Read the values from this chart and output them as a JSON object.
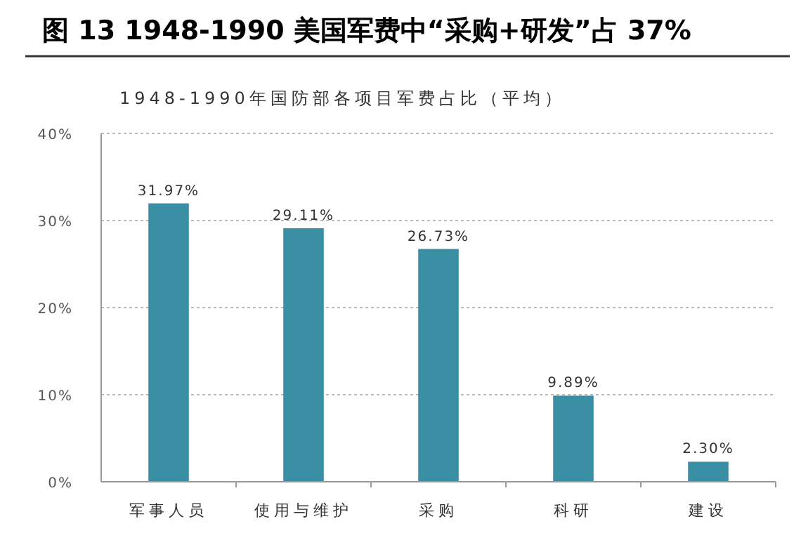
{
  "chart_data": {
    "type": "bar",
    "title": "图 13 1948-1990 美国军费中“采购+研发”占 37%",
    "subtitle": "1948-1990年国防部各项目军费占比（平均）",
    "categories": [
      "军事人员",
      "使用与维护",
      "采购",
      "科研",
      "建设"
    ],
    "values": [
      31.97,
      29.11,
      26.73,
      9.89,
      2.3
    ],
    "value_labels": [
      "31.97%",
      "29.11%",
      "26.73%",
      "9.89%",
      "2.30%"
    ],
    "color": "#3a8fa5",
    "ylim": [
      0,
      40
    ],
    "yticks": [
      {
        "value": 0,
        "label": "0%"
      },
      {
        "value": 10,
        "label": "10%"
      },
      {
        "value": 20,
        "label": "20%"
      },
      {
        "value": 30,
        "label": "30%"
      },
      {
        "value": 40,
        "label": "40%"
      }
    ],
    "grid": "y"
  }
}
